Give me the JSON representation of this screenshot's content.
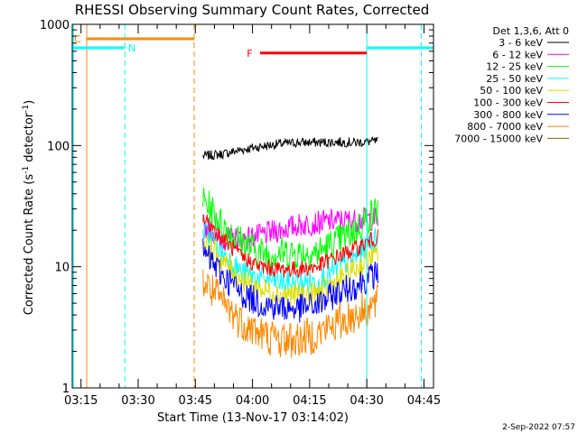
{
  "chart_data": {
    "type": "line",
    "title": "RHESSI Observing Summary Count Rates, Corrected",
    "xlabel": "Start Time (13-Nov-17 03:14:02)",
    "ylabel_main": "Corrected Count Rate (s",
    "ylabel_sup1": "-1",
    "ylabel_mid": " detector",
    "ylabel_sup2": "-1",
    "ylabel_end": ")",
    "y_scale": "log",
    "ylim": [
      1,
      1000
    ],
    "xlim_minutes": [
      -1.3,
      93.5
    ],
    "x_ticks": [
      {
        "m": 1,
        "label": "03:15"
      },
      {
        "m": 16,
        "label": "03:30"
      },
      {
        "m": 31,
        "label": "03:45"
      },
      {
        "m": 46,
        "label": "04:00"
      },
      {
        "m": 61,
        "label": "04:15"
      },
      {
        "m": 76,
        "label": "04:30"
      },
      {
        "m": 91,
        "label": "04:45"
      }
    ],
    "y_ticks": [
      {
        "v": 1,
        "label": "1"
      },
      {
        "v": 10,
        "label": "10"
      },
      {
        "v": 100,
        "label": "100"
      },
      {
        "v": 1000,
        "label": "1000"
      }
    ],
    "legend_header": "Det 1,3,6, Att 0",
    "legend_placement": "right",
    "series": [
      {
        "name": "3 - 6 keV",
        "color": "#000000",
        "x": [
          33,
          38,
          43,
          48,
          53,
          58,
          63,
          68,
          73,
          78,
          79
        ],
        "y": [
          82,
          85,
          92,
          98,
          103,
          106,
          106,
          107,
          106,
          108,
          108
        ]
      },
      {
        "name": "6 - 12 keV",
        "color": "#ff00ff",
        "x": [
          33,
          38,
          43,
          48,
          53,
          58,
          63,
          68,
          73,
          78,
          79
        ],
        "y": [
          22,
          17,
          17,
          18,
          20,
          22,
          23,
          24,
          24,
          25,
          25
        ]
      },
      {
        "name": "12 - 25 keV",
        "color": "#00ff00",
        "x": [
          33,
          38,
          43,
          48,
          53,
          58,
          63,
          68,
          73,
          78,
          79
        ],
        "y": [
          35,
          22,
          16,
          13,
          13,
          13,
          13,
          16,
          20,
          28,
          30
        ]
      },
      {
        "name": "25 - 50 keV",
        "color": "#00ffff",
        "x": [
          33,
          38,
          43,
          48,
          53,
          58,
          63,
          68,
          73,
          78,
          79
        ],
        "y": [
          20,
          13,
          9,
          8,
          7.5,
          7.3,
          7.5,
          9.5,
          12,
          17,
          18
        ]
      },
      {
        "name": "50 - 100 keV",
        "color": "#dddd00",
        "x": [
          33,
          38,
          43,
          48,
          53,
          58,
          63,
          68,
          73,
          78,
          79
        ],
        "y": [
          16,
          11,
          8,
          6.5,
          6,
          5.8,
          6,
          7.5,
          9.5,
          12,
          13
        ]
      },
      {
        "name": "100 - 300 keV",
        "color": "#ff0000",
        "x": [
          33,
          38,
          43,
          48,
          53,
          58,
          63,
          68,
          73,
          78,
          79
        ],
        "y": [
          25,
          17,
          12,
          10,
          9.5,
          9.5,
          10,
          12,
          14,
          17,
          18
        ]
      },
      {
        "name": "300 - 800 keV",
        "color": "#0000ff",
        "x": [
          33,
          38,
          43,
          48,
          53,
          58,
          63,
          68,
          73,
          78,
          79
        ],
        "y": [
          13,
          8.5,
          6,
          5,
          4.6,
          4.5,
          4.8,
          6,
          7,
          8.5,
          9
        ]
      },
      {
        "name": "800 - 7000 keV",
        "color": "#ff8800",
        "x": [
          33,
          38,
          43,
          48,
          53,
          58,
          63,
          68,
          73,
          78,
          79
        ],
        "y": [
          7.5,
          5,
          3.5,
          2.8,
          2.5,
          2.5,
          2.8,
          3.4,
          4,
          4.8,
          5
        ]
      },
      {
        "name": "7000 - 15000 keV",
        "color": "#886600",
        "x": [],
        "y": []
      }
    ],
    "annotations": {
      "N_label": "N",
      "F_label": "F",
      "C_label": "C",
      "flare_bar": {
        "x0": 48,
        "x1": 76,
        "y": 580,
        "color": "#ff0000"
      },
      "saa_bar": {
        "x0": 2.5,
        "x1": 30.7,
        "y": 760,
        "color": "#ff8800"
      },
      "night_bars": [
        {
          "x0": -1.3,
          "x1": 12.5,
          "y": 640,
          "color": "#00ffff"
        },
        {
          "x0": 76,
          "x1": 93.5,
          "y": 640,
          "color": "#00ffff"
        }
      ],
      "vlines": [
        {
          "m": -1.0,
          "color": "#00ffff",
          "dash": false
        },
        {
          "m": 2.5,
          "color": "#ff8800",
          "dash": false
        },
        {
          "m": 12.5,
          "color": "#00ffff",
          "dash": true
        },
        {
          "m": 30.7,
          "color": "#ff8800",
          "dash": true
        },
        {
          "m": 76,
          "color": "#00ffff",
          "dash": false
        },
        {
          "m": 90.3,
          "color": "#00ffff",
          "dash": true
        }
      ]
    }
  },
  "footer": {
    "date_stamp": "2-Sep-2022 07:57"
  }
}
